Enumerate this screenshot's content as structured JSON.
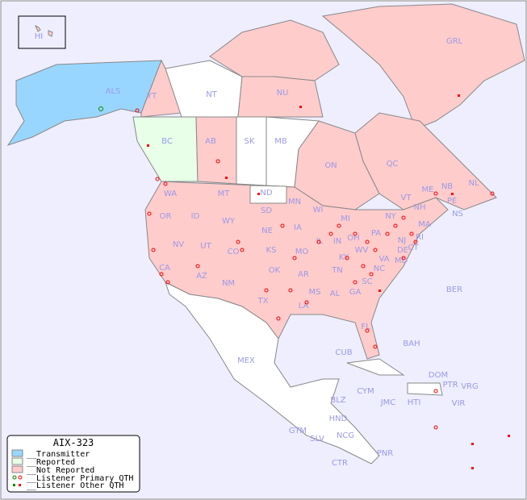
{
  "legend": {
    "title": "AIX-323",
    "items": [
      {
        "label": "__Transmitter",
        "color": "#99d6ff"
      },
      {
        "label": "__Reported",
        "color": "#e8ffe8"
      },
      {
        "label": "__Not Reported",
        "color": "#ffcccc"
      },
      {
        "label": "__Listener Primary QTH",
        "symbol": "circle"
      },
      {
        "label": "__Listener Other QTH",
        "symbol": "square"
      }
    ]
  },
  "colors": {
    "ocean": "#eeeeff",
    "transmitter": "#99d6ff",
    "reported": "#e8ffe8",
    "not_reported": "#ffcccc",
    "unlisted": "#ffffff",
    "label": "#9a9ae8",
    "marker": "#ff0000",
    "primary_marker_tx": "#008800"
  },
  "regions": {
    "HI": "HI",
    "ALS": "ALS",
    "YT": "YT",
    "NT": "NT",
    "NU": "NU",
    "GRL": "GRL",
    "BC": "BC",
    "AB": "AB",
    "SK": "SK",
    "MB": "MB",
    "ON": "ON",
    "QC": "QC",
    "NL": "NL",
    "NS": "NS",
    "NB": "NB",
    "PE": "PE",
    "WA": "WA",
    "OR": "OR",
    "CA": "CA",
    "NV": "NV",
    "ID": "ID",
    "MT": "MT",
    "WY": "WY",
    "UT": "UT",
    "AZ": "AZ",
    "CO": "CO",
    "NM": "NM",
    "ND": "ND",
    "SD": "SD",
    "NE": "NE",
    "KS": "KS",
    "OK": "OK",
    "TX": "TX",
    "MN": "MN",
    "IA": "IA",
    "MO": "MO",
    "AR": "AR",
    "LA": "LA",
    "WI": "WI",
    "IL": "IL",
    "MI": "MI",
    "IN": "IN",
    "OH": "OH",
    "KY": "KY",
    "TN": "TN",
    "MS": "MS",
    "AL": "AL",
    "GA": "GA",
    "FL": "FL",
    "SC": "SC",
    "NC": "NC",
    "VA": "VA",
    "WV": "WV",
    "PA": "PA",
    "NY": "NY",
    "VT": "VT",
    "NH": "NH",
    "ME": "ME",
    "MA": "MA",
    "CT": "CT",
    "RI": "RI",
    "NJ": "NJ",
    "DE": "DE",
    "MD": "MD",
    "BER": "BER",
    "BAH": "BAH",
    "CUB": "CUB",
    "MEX": "MEX",
    "CYM": "CYM",
    "JMC": "JMC",
    "HTI": "HTI",
    "DOM": "DOM",
    "PTR": "PTR",
    "VRG": "VRG",
    "VIR": "VIR",
    "BLZ": "BLZ",
    "GTM": "GTM",
    "HND": "HND",
    "SLV": "SLV",
    "NCG": "NCG",
    "CTR": "CTR",
    "PNR": "PNR"
  }
}
